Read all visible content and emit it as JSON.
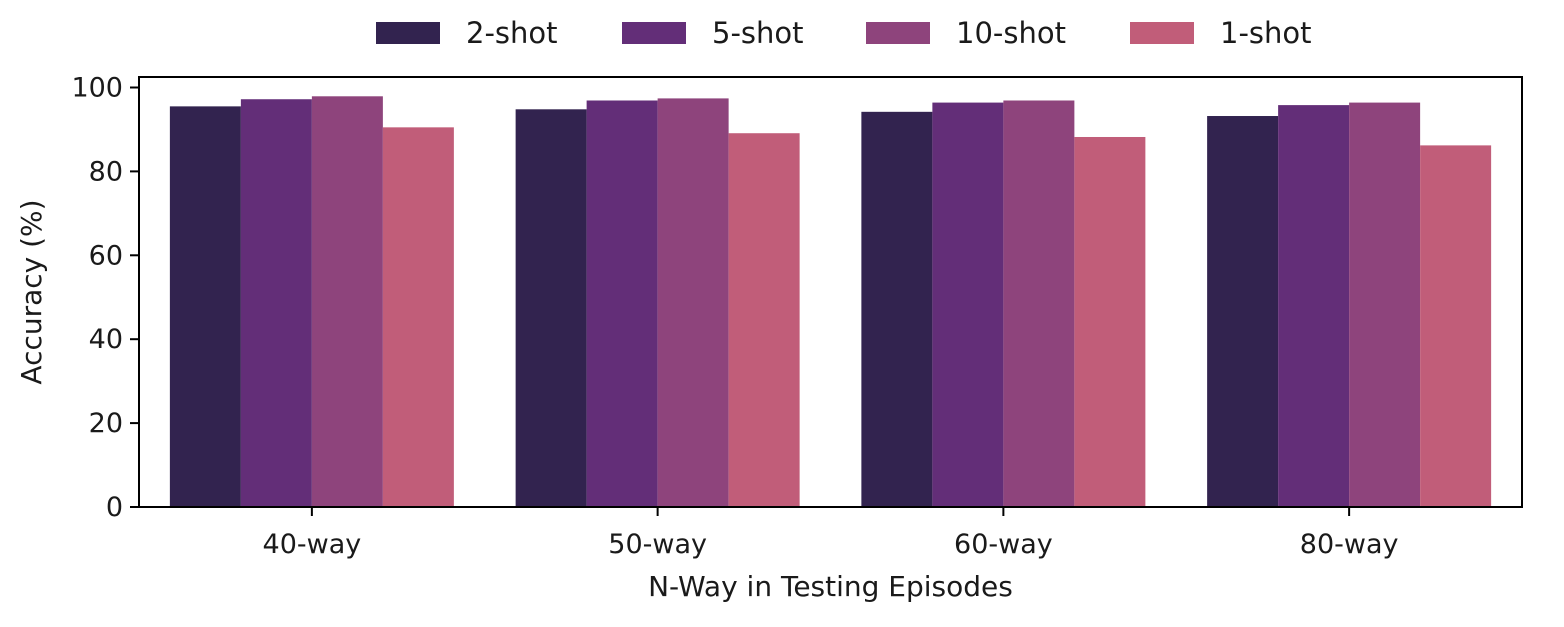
{
  "chart_data": {
    "type": "bar",
    "title": "",
    "xlabel": "N-Way in Testing Episodes",
    "ylabel": "Accuracy (%)",
    "ylim": [
      0,
      102.5
    ],
    "yticks": [
      "0",
      "20",
      "40",
      "60",
      "80",
      "100"
    ],
    "grid": false,
    "legend_position": "top-center",
    "categories": [
      "40-way",
      "50-way",
      "60-way",
      "80-way"
    ],
    "series": [
      {
        "name": "2-shot",
        "color": "#32234f",
        "values": [
          95.5,
          94.8,
          94.2,
          93.2
        ]
      },
      {
        "name": "5-shot",
        "color": "#632e78",
        "values": [
          97.2,
          96.9,
          96.4,
          95.8
        ]
      },
      {
        "name": "10-shot",
        "color": "#8e447c",
        "values": [
          97.9,
          97.4,
          96.9,
          96.4
        ]
      },
      {
        "name": "1-shot",
        "color": "#c15d79",
        "values": [
          90.5,
          89.1,
          88.2,
          86.2
        ]
      }
    ]
  }
}
